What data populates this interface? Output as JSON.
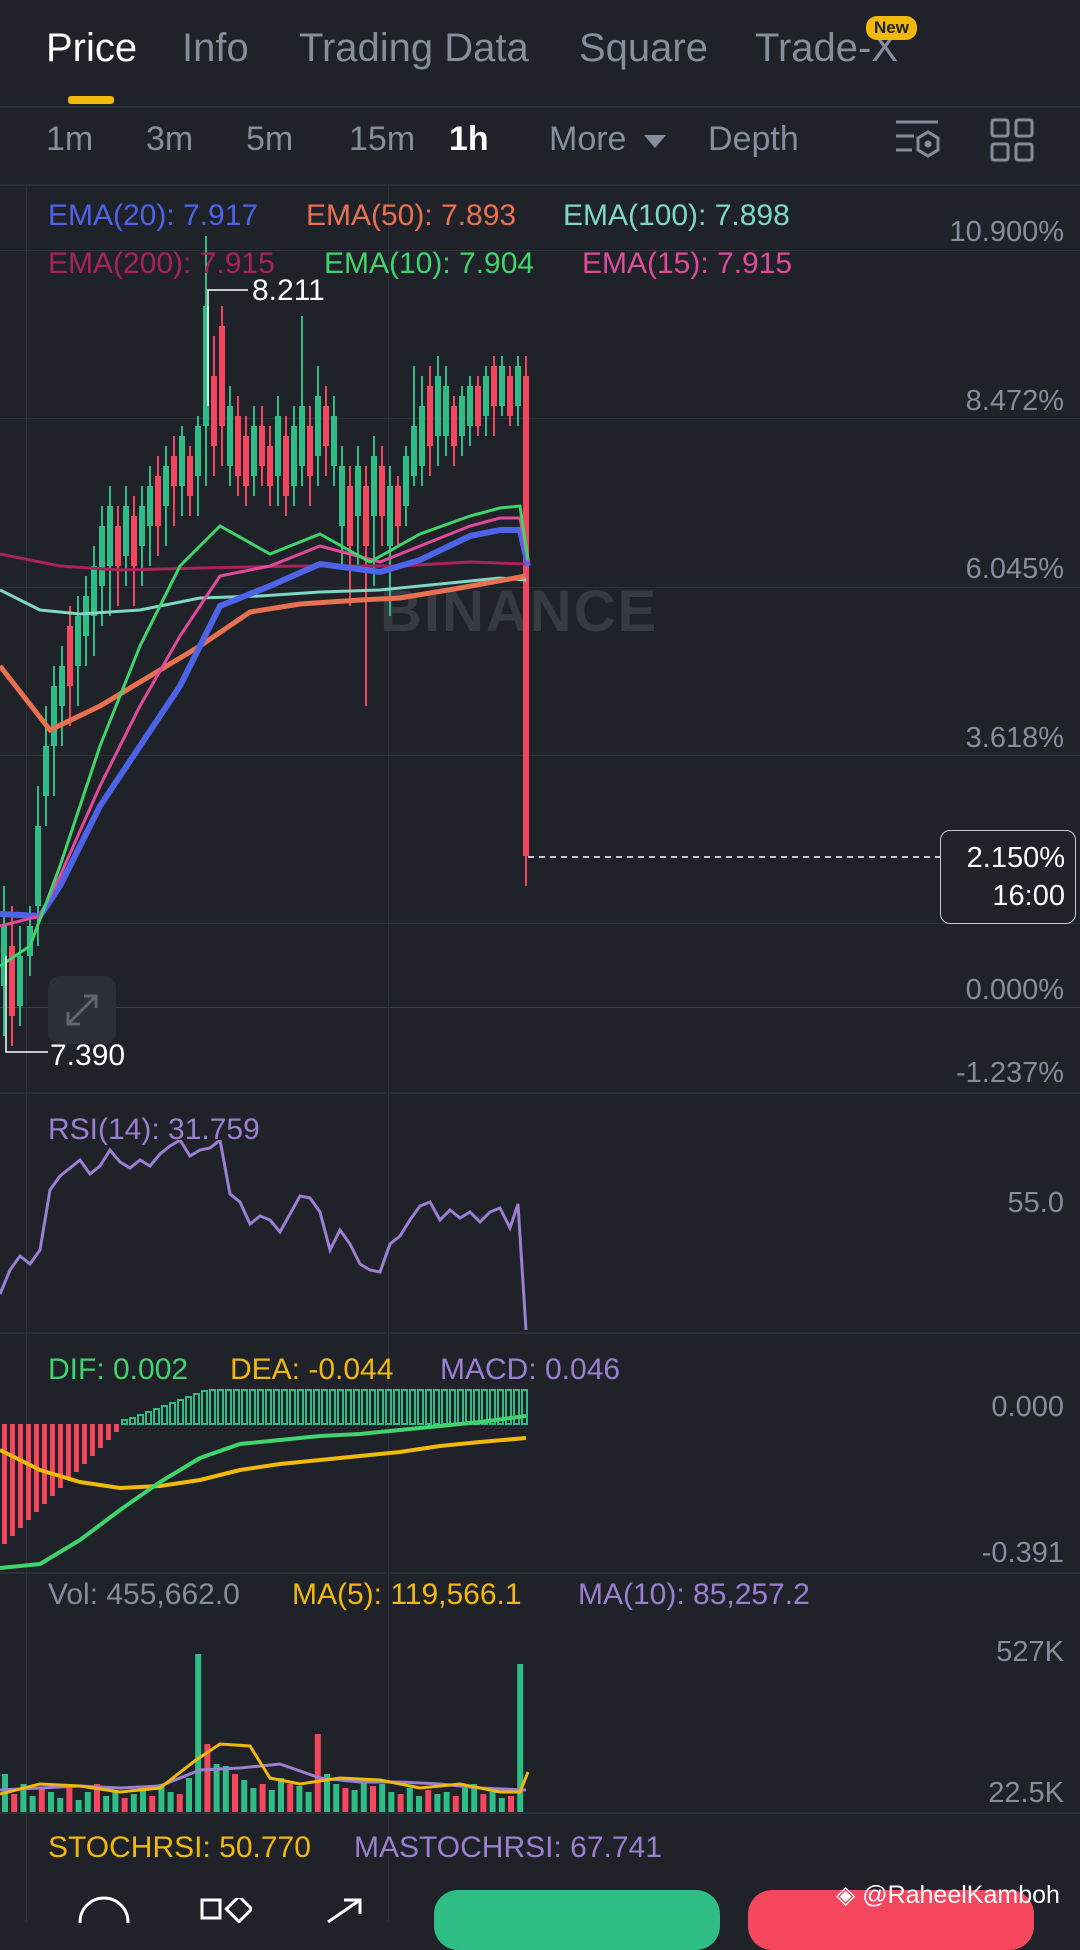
{
  "tabs": [
    {
      "label": "Price",
      "active": true
    },
    {
      "label": "Info"
    },
    {
      "label": "Trading Data"
    },
    {
      "label": "Square"
    },
    {
      "label": "Trade-X",
      "badge": "New"
    }
  ],
  "timeframes": {
    "items": [
      "1m",
      "3m",
      "5m",
      "15m",
      "1h"
    ],
    "active": "1h",
    "more_label": "More",
    "depth_label": "Depth"
  },
  "toolbar_icons": [
    "indicator-settings-icon",
    "layout-grid-icon"
  ],
  "ema_legend": {
    "ema20": "EMA(20): 7.917",
    "ema50": "EMA(50): 7.893",
    "ema100": "EMA(100): 7.898",
    "ema200": "EMA(200): 7.915",
    "ema10": "EMA(10): 7.904",
    "ema15": "EMA(15): 7.915"
  },
  "colors": {
    "ema20": "#4e64e8",
    "ema50": "#e8714f",
    "ema100": "#7fd8c4",
    "ema200": "#a8235a",
    "ema10": "#3fd46c",
    "ema15": "#e04a9a",
    "up": "#2ebd85",
    "down": "#f6465d",
    "rsi": "#9b7fd1",
    "dea": "#f0b90b"
  },
  "price_axis": [
    "10.900%",
    "8.472%",
    "6.045%",
    "3.618%",
    "0.000%",
    "-1.237%"
  ],
  "annotations": {
    "high": "8.211",
    "low": "7.390"
  },
  "watermark": "BINANCE",
  "current": {
    "pct": "2.150%",
    "countdown": "16:00"
  },
  "rsi": {
    "label": "RSI(14): 31.759",
    "axis": "55.0"
  },
  "macd": {
    "dif": "DIF: 0.002",
    "dea": "DEA: -0.044",
    "macd": "MACD: 0.046",
    "axis_top": "0.000",
    "axis_bottom": "-0.391"
  },
  "volume": {
    "vol": "Vol: 455,662.0",
    "ma5": "MA(5): 119,566.1",
    "ma10": "MA(10): 85,257.2",
    "axis_top": "527K",
    "axis_bottom": "22.5K"
  },
  "stochrsi": {
    "stoch": "STOCHRSI: 50.770",
    "ma": "MASTOCHRSI: 67.741"
  },
  "credit": "@RaheelKamboh"
}
